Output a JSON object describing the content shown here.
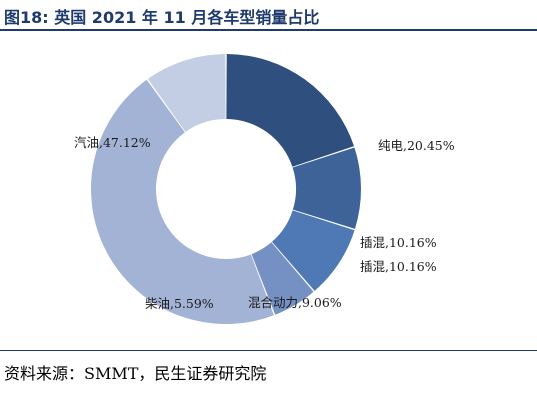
{
  "title": "图18: 英国 2021 年 11 月各车型销量占比",
  "source": "资料来源：SMMT，民生证券研究院",
  "chart_data": {
    "type": "pie",
    "title": "",
    "donut": true,
    "slices": [
      {
        "name": "纯电",
        "value": 20.45,
        "label": "纯电,20.45%",
        "color": "#2f4f7f"
      },
      {
        "name": "插混",
        "value": 10.16,
        "label": "插混,10.16%",
        "color": "#3e6399"
      },
      {
        "name": "混合动力",
        "value": 9.06,
        "label": "混合动力,9.06%",
        "color": "#4f79b4"
      },
      {
        "name": "柴油",
        "value": 5.59,
        "label": "柴油,5.59%",
        "color": "#7590c3"
      },
      {
        "name": "汽油",
        "value": 47.12,
        "label": "汽油,47.12%",
        "color": "#a3b3d6"
      },
      {
        "name": "插混",
        "value": 10.16,
        "label": "插混,10.16%",
        "color": "#c3cde4"
      }
    ]
  }
}
